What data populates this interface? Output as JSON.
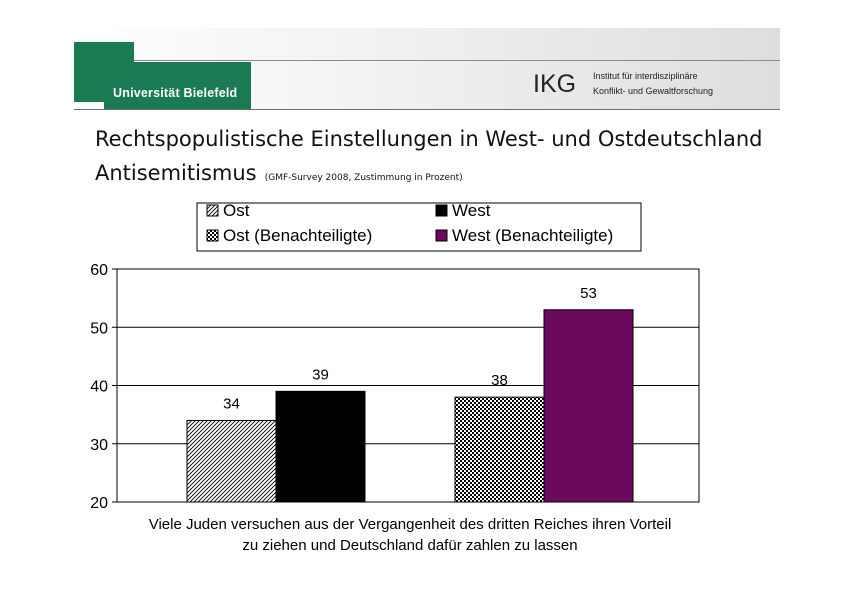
{
  "header": {
    "university_name": "Universität Bielefeld",
    "institute_abbrev": "IKG",
    "institute_line1": "Institut für interdisziplinäre",
    "institute_line2": "Konflikt- und Gewaltforschung",
    "accent_color": "#1a7a52"
  },
  "slide": {
    "title": "Rechtspopulistische Einstellungen in West- und Ostdeutschland",
    "subtitle": "Antisemitismus",
    "source_note": "(GMF-Survey 2008, Zustimmung in Prozent)"
  },
  "chart_data": {
    "type": "bar",
    "title": "",
    "categories": [
      "Viele Juden versuchen aus der Vergangenheit des dritten Reiches ihren Vorteil zu ziehen und Deutschland dafür zahlen zu lassen"
    ],
    "category_label_lines": [
      "Viele Juden versuchen aus der Vergangenheit des dritten Reiches ihren Vorteil",
      "zu ziehen und Deutschland dafür zahlen zu lassen"
    ],
    "series": [
      {
        "name": "Ost",
        "values": [
          34
        ],
        "fill": "diagonal-hatch"
      },
      {
        "name": "West",
        "values": [
          39
        ],
        "fill": "#000000"
      },
      {
        "name": "Ost (Benachteiligte)",
        "values": [
          38
        ],
        "fill": "checker"
      },
      {
        "name": "West (Benachteiligte)",
        "values": [
          53
        ],
        "fill": "#6b0a5c"
      }
    ],
    "ylim": [
      20,
      60
    ],
    "yticks": [
      20,
      30,
      40,
      50,
      60
    ],
    "xlabel": "",
    "ylabel": "",
    "legend_position": "top",
    "grid": true
  }
}
